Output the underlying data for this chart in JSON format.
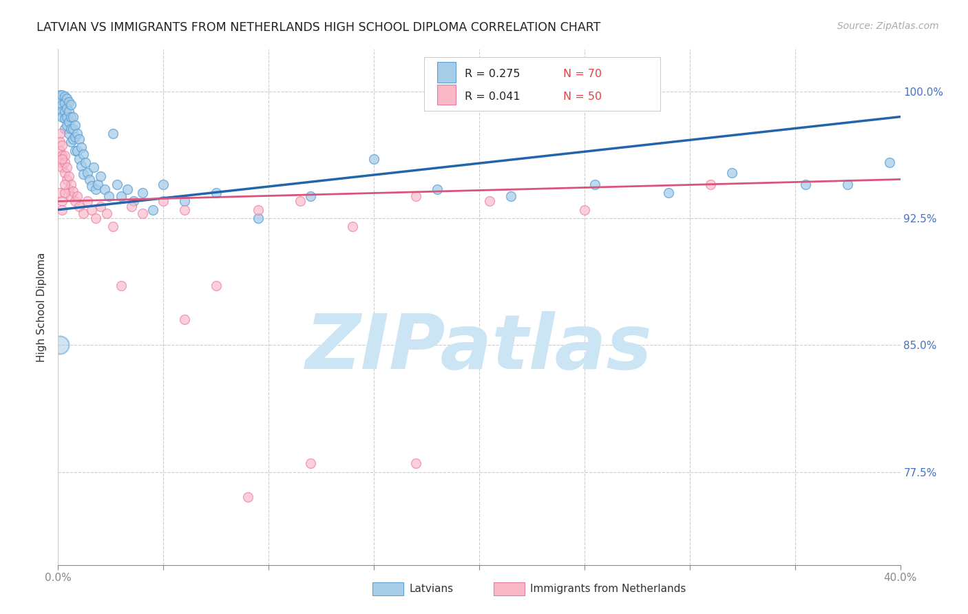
{
  "title": "LATVIAN VS IMMIGRANTS FROM NETHERLANDS HIGH SCHOOL DIPLOMA CORRELATION CHART",
  "source": "Source: ZipAtlas.com",
  "ylabel": "High School Diploma",
  "ytick_labels": [
    "77.5%",
    "85.0%",
    "92.5%",
    "100.0%"
  ],
  "ytick_values": [
    0.775,
    0.85,
    0.925,
    1.0
  ],
  "xmin": 0.0,
  "xmax": 0.4,
  "ymin": 0.72,
  "ymax": 1.025,
  "latvian_color": "#a8cde8",
  "latvian_edge": "#5a9fd4",
  "netherlands_color": "#f9b8c8",
  "netherlands_edge": "#e87aa0",
  "trend_latvian_color": "#2166ac",
  "trend_netherlands_color": "#d9547a",
  "watermark_text": "ZIPatlas",
  "watermark_color": "#cce5f5",
  "legend_label_r1": "R = 0.275",
  "legend_label_n1": "N = 70",
  "legend_label_r2": "R = 0.041",
  "legend_label_n2": "N = 50",
  "legend_color_r": "#4472c4",
  "legend_color_n": "#e84040",
  "marker_size": 100,
  "large_marker_size": 350,
  "trend_lv_x0": 0.0,
  "trend_lv_y0": 0.93,
  "trend_lv_x1": 0.4,
  "trend_lv_y1": 0.985,
  "trend_nl_x0": 0.0,
  "trend_nl_y0": 0.935,
  "trend_nl_x1": 0.4,
  "trend_nl_y1": 0.948,
  "latvian_x": [
    0.001,
    0.001,
    0.001,
    0.002,
    0.002,
    0.002,
    0.002,
    0.003,
    0.003,
    0.003,
    0.003,
    0.003,
    0.004,
    0.004,
    0.004,
    0.004,
    0.005,
    0.005,
    0.005,
    0.005,
    0.006,
    0.006,
    0.006,
    0.006,
    0.007,
    0.007,
    0.007,
    0.008,
    0.008,
    0.008,
    0.009,
    0.009,
    0.01,
    0.01,
    0.011,
    0.011,
    0.012,
    0.012,
    0.013,
    0.014,
    0.015,
    0.016,
    0.017,
    0.018,
    0.019,
    0.02,
    0.022,
    0.024,
    0.026,
    0.028,
    0.03,
    0.033,
    0.036,
    0.04,
    0.045,
    0.05,
    0.06,
    0.075,
    0.095,
    0.12,
    0.15,
    0.18,
    0.215,
    0.255,
    0.29,
    0.32,
    0.355,
    0.375,
    0.395,
    0.001
  ],
  "latvian_y": [
    0.998,
    0.995,
    0.99,
    0.998,
    0.992,
    0.988,
    0.985,
    0.997,
    0.993,
    0.988,
    0.984,
    0.978,
    0.996,
    0.99,
    0.985,
    0.98,
    0.994,
    0.988,
    0.982,
    0.975,
    0.992,
    0.985,
    0.978,
    0.97,
    0.985,
    0.978,
    0.972,
    0.98,
    0.973,
    0.965,
    0.975,
    0.965,
    0.972,
    0.96,
    0.967,
    0.956,
    0.963,
    0.951,
    0.958,
    0.952,
    0.948,
    0.944,
    0.955,
    0.942,
    0.945,
    0.95,
    0.942,
    0.938,
    0.975,
    0.945,
    0.938,
    0.942,
    0.935,
    0.94,
    0.93,
    0.945,
    0.935,
    0.94,
    0.925,
    0.938,
    0.96,
    0.942,
    0.938,
    0.945,
    0.94,
    0.952,
    0.945,
    0.945,
    0.958,
    0.85
  ],
  "netherlands_x": [
    0.001,
    0.001,
    0.001,
    0.001,
    0.002,
    0.002,
    0.002,
    0.003,
    0.003,
    0.003,
    0.004,
    0.004,
    0.005,
    0.005,
    0.006,
    0.006,
    0.007,
    0.008,
    0.009,
    0.01,
    0.012,
    0.014,
    0.016,
    0.018,
    0.02,
    0.023,
    0.026,
    0.03,
    0.035,
    0.04,
    0.05,
    0.06,
    0.075,
    0.095,
    0.115,
    0.14,
    0.17,
    0.205,
    0.25,
    0.31,
    0.001,
    0.002,
    0.003,
    0.002,
    0.003,
    0.002,
    0.12,
    0.17,
    0.09,
    0.06
  ],
  "netherlands_y": [
    0.975,
    0.97,
    0.965,
    0.958,
    0.968,
    0.962,
    0.955,
    0.962,
    0.958,
    0.952,
    0.955,
    0.948,
    0.95,
    0.942,
    0.945,
    0.938,
    0.941,
    0.935,
    0.938,
    0.932,
    0.928,
    0.935,
    0.93,
    0.925,
    0.932,
    0.928,
    0.92,
    0.885,
    0.932,
    0.928,
    0.935,
    0.93,
    0.885,
    0.93,
    0.935,
    0.92,
    0.938,
    0.935,
    0.93,
    0.945,
    0.94,
    0.935,
    0.94,
    0.96,
    0.945,
    0.93,
    0.78,
    0.78,
    0.76,
    0.865
  ]
}
